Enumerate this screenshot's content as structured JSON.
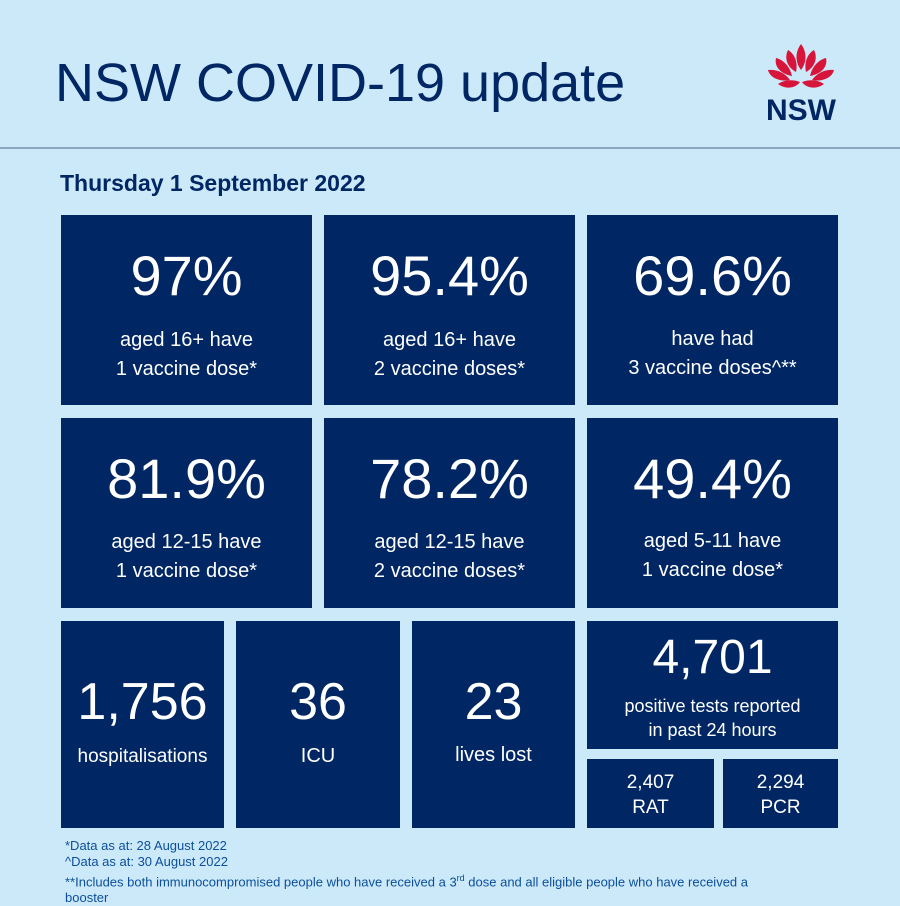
{
  "header": {
    "title": "NSW COVID-19 update",
    "logo_text": "NSW",
    "logo_color": "#d7153a"
  },
  "date": "Thursday 1 September 2022",
  "colors": {
    "background": "#cce9f9",
    "tile": "#002664",
    "footnote": "#0b4f9c"
  },
  "vaccination": [
    {
      "value": "97%",
      "line1": "aged 16+ have",
      "line2": "1 vaccine dose*"
    },
    {
      "value": "95.4%",
      "line1": "aged 16+ have",
      "line2": "2 vaccine doses*"
    },
    {
      "value": "69.6%",
      "line1": "have had",
      "line2": "3 vaccine doses^**"
    },
    {
      "value": "81.9%",
      "line1": "aged 12-15 have",
      "line2": "1 vaccine dose*"
    },
    {
      "value": "78.2%",
      "line1": "aged 12-15 have",
      "line2": "2 vaccine doses*"
    },
    {
      "value": "49.4%",
      "line1": "aged 5-11 have",
      "line2": "1 vaccine dose*"
    }
  ],
  "stats": [
    {
      "value": "1,756",
      "label": "hospitalisations"
    },
    {
      "value": "36",
      "label": "ICU"
    },
    {
      "value": "23",
      "label": "lives lost"
    }
  ],
  "tests": {
    "value": "4,701",
    "line1": "positive tests reported",
    "line2": "in past 24 hours",
    "rat": {
      "value": "2,407",
      "label": "RAT"
    },
    "pcr": {
      "value": "2,294",
      "label": "PCR"
    }
  },
  "footnotes": {
    "note1": "*Data as at: 28 August 2022",
    "note2": "^Data as at: 30 August 2022",
    "note3_part1": "**Includes both immunocompromised people who have received a 3",
    "note3_sup": "rd",
    "note3_part2": " dose and all eligible people who have received a",
    "note3_part3": "booster"
  }
}
